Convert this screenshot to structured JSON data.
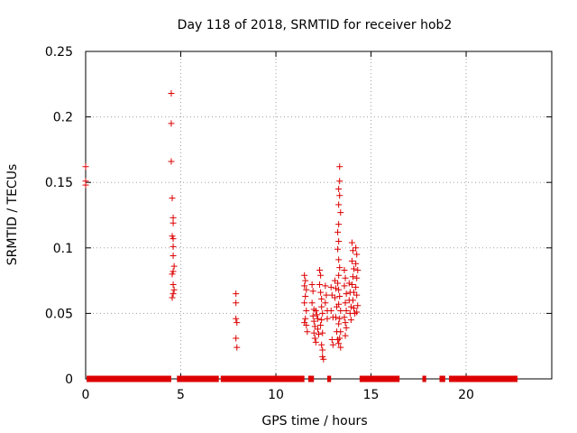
{
  "chart_data": {
    "type": "scatter",
    "title": "Day 118 of 2018, SRMTID for receiver hob2",
    "xlabel": "GPS time / hours",
    "ylabel": "SRMTID / TECUs",
    "xlim": [
      0,
      24.5
    ],
    "ylim": [
      0,
      0.25
    ],
    "grid": true,
    "marker": "+",
    "color": "#dd0000",
    "x_ticks": [
      0,
      5,
      10,
      15,
      20
    ],
    "x_tick_labels": [
      "0",
      "5",
      "10",
      "15",
      "20"
    ],
    "y_ticks": [
      0,
      0.05,
      0.1,
      0.15,
      0.2,
      0.25
    ],
    "y_tick_labels": [
      "0",
      "0.05",
      "0.1",
      "0.15",
      "0.2",
      "0.25"
    ],
    "zero_segments": [
      {
        "x_start": 0.05,
        "x_end": 4.5
      },
      {
        "x_start": 4.8,
        "x_end": 7.0
      },
      {
        "x_start": 7.1,
        "x_end": 11.5
      },
      {
        "x_start": 11.7,
        "x_end": 12.0
      },
      {
        "x_start": 12.7,
        "x_end": 12.9
      },
      {
        "x_start": 14.4,
        "x_end": 16.5
      },
      {
        "x_start": 17.7,
        "x_end": 17.9
      },
      {
        "x_start": 18.6,
        "x_end": 18.9
      },
      {
        "x_start": 19.1,
        "x_end": 22.7
      }
    ],
    "points": [
      {
        "x": 0.0,
        "y": 0.162
      },
      {
        "x": 0.0,
        "y": 0.151
      },
      {
        "x": 0.0,
        "y": 0.148
      },
      {
        "x": 4.5,
        "y": 0.218
      },
      {
        "x": 4.5,
        "y": 0.195
      },
      {
        "x": 4.5,
        "y": 0.166
      },
      {
        "x": 4.55,
        "y": 0.138
      },
      {
        "x": 4.6,
        "y": 0.123
      },
      {
        "x": 4.6,
        "y": 0.119
      },
      {
        "x": 4.55,
        "y": 0.109
      },
      {
        "x": 4.6,
        "y": 0.107
      },
      {
        "x": 4.6,
        "y": 0.101
      },
      {
        "x": 4.6,
        "y": 0.094
      },
      {
        "x": 4.65,
        "y": 0.086
      },
      {
        "x": 4.6,
        "y": 0.082
      },
      {
        "x": 4.55,
        "y": 0.08
      },
      {
        "x": 4.6,
        "y": 0.072
      },
      {
        "x": 4.65,
        "y": 0.068
      },
      {
        "x": 4.6,
        "y": 0.065
      },
      {
        "x": 4.55,
        "y": 0.062
      },
      {
        "x": 7.9,
        "y": 0.065
      },
      {
        "x": 7.9,
        "y": 0.058
      },
      {
        "x": 7.9,
        "y": 0.046
      },
      {
        "x": 7.95,
        "y": 0.043
      },
      {
        "x": 7.9,
        "y": 0.031
      },
      {
        "x": 7.95,
        "y": 0.024
      },
      {
        "x": 11.5,
        "y": 0.079
      },
      {
        "x": 11.55,
        "y": 0.075
      },
      {
        "x": 11.5,
        "y": 0.071
      },
      {
        "x": 11.6,
        "y": 0.068
      },
      {
        "x": 11.55,
        "y": 0.063
      },
      {
        "x": 11.5,
        "y": 0.058
      },
      {
        "x": 11.6,
        "y": 0.052
      },
      {
        "x": 11.55,
        "y": 0.046
      },
      {
        "x": 11.5,
        "y": 0.043
      },
      {
        "x": 11.6,
        "y": 0.041
      },
      {
        "x": 11.65,
        "y": 0.036
      },
      {
        "x": 11.9,
        "y": 0.072
      },
      {
        "x": 11.95,
        "y": 0.067
      },
      {
        "x": 11.9,
        "y": 0.058
      },
      {
        "x": 12.0,
        "y": 0.053
      },
      {
        "x": 11.95,
        "y": 0.048
      },
      {
        "x": 12.0,
        "y": 0.044
      },
      {
        "x": 12.05,
        "y": 0.04
      },
      {
        "x": 12.0,
        "y": 0.035
      },
      {
        "x": 12.05,
        "y": 0.031
      },
      {
        "x": 12.1,
        "y": 0.028
      },
      {
        "x": 12.1,
        "y": 0.052
      },
      {
        "x": 12.15,
        "y": 0.049
      },
      {
        "x": 12.2,
        "y": 0.046
      },
      {
        "x": 12.2,
        "y": 0.038
      },
      {
        "x": 12.25,
        "y": 0.034
      },
      {
        "x": 12.3,
        "y": 0.083
      },
      {
        "x": 12.35,
        "y": 0.079
      },
      {
        "x": 12.3,
        "y": 0.072
      },
      {
        "x": 12.35,
        "y": 0.066
      },
      {
        "x": 12.4,
        "y": 0.061
      },
      {
        "x": 12.4,
        "y": 0.055
      },
      {
        "x": 12.45,
        "y": 0.05
      },
      {
        "x": 12.4,
        "y": 0.045
      },
      {
        "x": 12.35,
        "y": 0.041
      },
      {
        "x": 12.45,
        "y": 0.035
      },
      {
        "x": 12.4,
        "y": 0.026
      },
      {
        "x": 12.45,
        "y": 0.022
      },
      {
        "x": 12.45,
        "y": 0.017
      },
      {
        "x": 12.5,
        "y": 0.015
      },
      {
        "x": 12.6,
        "y": 0.071
      },
      {
        "x": 12.65,
        "y": 0.064
      },
      {
        "x": 12.6,
        "y": 0.058
      },
      {
        "x": 12.7,
        "y": 0.052
      },
      {
        "x": 12.7,
        "y": 0.046
      },
      {
        "x": 12.9,
        "y": 0.07
      },
      {
        "x": 12.95,
        "y": 0.064
      },
      {
        "x": 12.9,
        "y": 0.052
      },
      {
        "x": 13.0,
        "y": 0.047
      },
      {
        "x": 12.95,
        "y": 0.03
      },
      {
        "x": 13.0,
        "y": 0.026
      },
      {
        "x": 13.1,
        "y": 0.075
      },
      {
        "x": 13.15,
        "y": 0.069
      },
      {
        "x": 13.1,
        "y": 0.062
      },
      {
        "x": 13.2,
        "y": 0.055
      },
      {
        "x": 13.15,
        "y": 0.047
      },
      {
        "x": 13.2,
        "y": 0.036
      },
      {
        "x": 13.25,
        "y": 0.03
      },
      {
        "x": 13.35,
        "y": 0.162
      },
      {
        "x": 13.35,
        "y": 0.151
      },
      {
        "x": 13.3,
        "y": 0.145
      },
      {
        "x": 13.35,
        "y": 0.14
      },
      {
        "x": 13.3,
        "y": 0.133
      },
      {
        "x": 13.4,
        "y": 0.127
      },
      {
        "x": 13.3,
        "y": 0.118
      },
      {
        "x": 13.25,
        "y": 0.112
      },
      {
        "x": 13.3,
        "y": 0.105
      },
      {
        "x": 13.25,
        "y": 0.099
      },
      {
        "x": 13.3,
        "y": 0.091
      },
      {
        "x": 13.35,
        "y": 0.085
      },
      {
        "x": 13.3,
        "y": 0.079
      },
      {
        "x": 13.25,
        "y": 0.073
      },
      {
        "x": 13.3,
        "y": 0.068
      },
      {
        "x": 13.35,
        "y": 0.063
      },
      {
        "x": 13.3,
        "y": 0.057
      },
      {
        "x": 13.4,
        "y": 0.052
      },
      {
        "x": 13.35,
        "y": 0.046
      },
      {
        "x": 13.3,
        "y": 0.042
      },
      {
        "x": 13.4,
        "y": 0.036
      },
      {
        "x": 13.35,
        "y": 0.031
      },
      {
        "x": 13.3,
        "y": 0.027
      },
      {
        "x": 13.4,
        "y": 0.024
      },
      {
        "x": 13.6,
        "y": 0.083
      },
      {
        "x": 13.65,
        "y": 0.077
      },
      {
        "x": 13.6,
        "y": 0.071
      },
      {
        "x": 13.7,
        "y": 0.065
      },
      {
        "x": 13.65,
        "y": 0.058
      },
      {
        "x": 13.7,
        "y": 0.052
      },
      {
        "x": 13.6,
        "y": 0.047
      },
      {
        "x": 13.65,
        "y": 0.043
      },
      {
        "x": 13.7,
        "y": 0.039
      },
      {
        "x": 13.65,
        "y": 0.033
      },
      {
        "x": 13.85,
        "y": 0.073
      },
      {
        "x": 13.9,
        "y": 0.066
      },
      {
        "x": 13.85,
        "y": 0.06
      },
      {
        "x": 13.95,
        "y": 0.055
      },
      {
        "x": 13.9,
        "y": 0.05
      },
      {
        "x": 13.95,
        "y": 0.045
      },
      {
        "x": 14.0,
        "y": 0.104
      },
      {
        "x": 14.05,
        "y": 0.098
      },
      {
        "x": 14.0,
        "y": 0.09
      },
      {
        "x": 14.1,
        "y": 0.084
      },
      {
        "x": 14.05,
        "y": 0.078
      },
      {
        "x": 14.0,
        "y": 0.072
      },
      {
        "x": 14.1,
        "y": 0.066
      },
      {
        "x": 14.05,
        "y": 0.06
      },
      {
        "x": 14.1,
        "y": 0.054
      },
      {
        "x": 14.15,
        "y": 0.05
      },
      {
        "x": 14.2,
        "y": 0.1
      },
      {
        "x": 14.25,
        "y": 0.095
      },
      {
        "x": 14.2,
        "y": 0.088
      },
      {
        "x": 14.3,
        "y": 0.083
      },
      {
        "x": 14.25,
        "y": 0.077
      },
      {
        "x": 14.2,
        "y": 0.07
      },
      {
        "x": 14.25,
        "y": 0.064
      },
      {
        "x": 14.3,
        "y": 0.056
      },
      {
        "x": 14.25,
        "y": 0.051
      }
    ]
  }
}
